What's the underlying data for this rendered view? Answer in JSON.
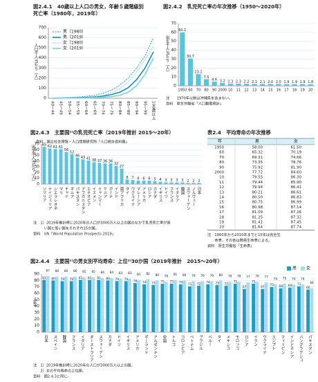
{
  "chart_data": [
    {
      "type": "line",
      "title": [
        "図2.4.1　40歳以上人口の男女，年齢５歳階級別",
        "死亡率（1980年，2019年）"
      ],
      "y_label": "人口千人当たり（人）",
      "categories": [
        "40～44",
        "45～49",
        "50～54",
        "55～59",
        "60～64",
        "65～69",
        "70～74",
        "75～79",
        "80～84",
        "85～89",
        "90～94",
        "95～99",
        "100歳以上"
      ],
      "series": [
        {
          "name": "男（1980）",
          "color": "#1a8fb0",
          "dash": true,
          "values": [
            3,
            5,
            8,
            12,
            19,
            30,
            50,
            80,
            130,
            200,
            300,
            420,
            600
          ]
        },
        {
          "name": "男（2019）",
          "color": "#1a8fb0",
          "dash": false,
          "values": [
            1.2,
            2,
            3.3,
            5.5,
            8.7,
            14,
            22,
            36,
            60,
            105,
            185,
            300,
            460
          ]
        },
        {
          "name": "女（1980）",
          "color": "#7fd0e8",
          "dash": true,
          "values": [
            1.8,
            2.8,
            4,
            6,
            9,
            15,
            28,
            52,
            95,
            160,
            260,
            380,
            520
          ]
        },
        {
          "name": "女（2019）",
          "color": "#7fd0e8",
          "dash": false,
          "values": [
            0.7,
            1.1,
            1.8,
            2.6,
            3.8,
            5.7,
            9,
            16,
            30,
            60,
            125,
            235,
            400
          ]
        }
      ],
      "ylim": [
        0,
        700
      ],
      "yticks": [
        0,
        100,
        200,
        300,
        400,
        500,
        600,
        700
      ],
      "grid": true,
      "legend": "upper left",
      "notes": [
        "資料　国立社会保障・人口問題研究所「人口統計資料集」"
      ]
    },
    {
      "type": "bar",
      "title": "図2.4.2　乳児死亡率の年次推移（1950〜2020年）",
      "y_label": "出生千人当たり（人）",
      "categories": [
        "1950",
        "60",
        "70",
        "80",
        "90",
        "2000",
        "10",
        "11",
        "12",
        "13",
        "14",
        "15",
        "16",
        "17",
        "18",
        "19",
        "20"
      ],
      "values": [
        60.1,
        30.7,
        13.1,
        7.5,
        4.6,
        3.2,
        2.3,
        2.3,
        2.2,
        2.1,
        2.1,
        2.0,
        2.0,
        1.9,
        1.9,
        1.9,
        1.8
      ],
      "value_labels": [
        "60.1",
        "30.7",
        "13.1",
        "7.5",
        "4.6",
        "3.2",
        "2.3",
        "2.3",
        "2.2",
        "2.1",
        "2.1",
        "2.0",
        "2.0",
        "1.9",
        "1.9",
        "1.9",
        "1.8"
      ],
      "color": "#5bc3e0",
      "ylim": [
        0,
        70
      ],
      "yticks": [
        0,
        10,
        20,
        30,
        40,
        50,
        60,
        70
      ],
      "grid": true,
      "notes": [
        "注　　1970年以前は沖縄県を含まない。",
        "資料　厚生労働省「人口動態統計」"
      ]
    },
    {
      "type": "bar",
      "title": "図2.4.3　主要国¹⁾の乳児死亡率（2019年推計 2015〜20年）",
      "y_label": "出生千人当たり（人）",
      "categories": [
        "ソマリア",
        "ナイジェリア",
        "シエラレオネ",
        "マリ",
        "チャド",
        "ギニア",
        "パキスタン",
        "アフガニスタン",
        "エチオピア",
        "イエメン",
        "ミャンマー",
        "ケニア",
        "ガーナ",
        "インド",
        "南アフリカ",
        "タイ",
        "ウクライナ",
        "マレーシア",
        "アメリカ",
        "ロシア",
        "カナダ",
        "イギリス",
        "ドイツ",
        "フランス",
        "イタリア",
        "韓国",
        "スウェーデン",
        "ノルウェー",
        "日本"
      ],
      "values": [
        65,
        62,
        61,
        61,
        56,
        52,
        46,
        43,
        41,
        38,
        37,
        36,
        36,
        32,
        27,
        8,
        7,
        6,
        6,
        6,
        5,
        4,
        3,
        3,
        3,
        3,
        2,
        2,
        2
      ],
      "color": "#5bc3e0",
      "ylim": [
        0,
        70
      ],
      "yticks": [
        0,
        10,
        20,
        30,
        40,
        50,
        60,
        70
      ],
      "grid": true,
      "notes": [
        "注　1）2019年推計時に2020年の人口が3000万人以上の国のなかで乳児死亡率が高",
        "　　　い国と低い国をそれぞれ15か国。",
        "資料　UN「World Population Prospects 2019」"
      ]
    },
    {
      "type": "grouped_bar",
      "title": "図2.4.4　主要国¹⁾の男女別平均寿命：上位²⁾30か国（2019年推計　2015〜20年）",
      "y_label": "（年）",
      "categories": [
        "日本",
        "スペイン",
        "韓国",
        "フランス",
        "イタリア",
        "オーストラリア",
        "スウェーデン",
        "カナダ",
        "ドイツ",
        "イギリス",
        "アメリカ",
        "ポーランド",
        "アルゼンチン",
        "中国",
        "トルコ",
        "コロンビア",
        "ベトナム",
        "ブラジル",
        "ペルー",
        "タイ",
        "メキシコ",
        "モロッコ",
        "ロシア",
        "イラン",
        "ウクライナ",
        "エジプト",
        "フィリピン",
        "インドネシア",
        "バングラデシュ",
        "パキスタン"
      ],
      "series": [
        {
          "name": "男",
          "color": "#1f9bc4",
          "values": [
            81,
            80,
            79,
            79,
            81,
            81,
            81,
            80,
            79,
            79,
            76,
            74,
            73,
            75,
            75,
            74,
            71,
            72,
            74,
            73,
            72,
            75,
            67,
            75,
            67,
            70,
            68,
            69,
            71,
            66
          ]
        },
        {
          "name": "女",
          "color": "#a8dcef",
          "values": [
            87,
            86,
            86,
            86,
            85,
            85,
            84,
            84,
            83,
            83,
            81,
            82,
            80,
            78,
            81,
            80,
            79,
            79,
            79,
            80,
            78,
            78,
            77,
            78,
            77,
            74,
            75,
            74,
            74,
            68
          ]
        }
      ],
      "ylim": [
        0,
        90
      ],
      "yticks": [
        0,
        10,
        20,
        30,
        40,
        50,
        60,
        70,
        80,
        90
      ],
      "grid": true,
      "legend": "upper right",
      "notes": [
        "注　1）2019年推計時に2020年の人口が3000万人以上の国。",
        "　　2）女の平均寿命の上位順。",
        "資料　図2.4.3と同じ。"
      ]
    }
  ],
  "table": {
    "title": "表2.4　平均寿命の年次推移",
    "columns": [
      "年",
      "男",
      "女"
    ],
    "rows": [
      [
        "1950",
        "58.00",
        "61.50"
      ],
      [
        "60",
        "65.32",
        "70.19"
      ],
      [
        "70",
        "69.31",
        "74.66"
      ],
      [
        "80",
        "73.35",
        "78.76"
      ],
      [
        "90",
        "75.92",
        "81.90"
      ],
      [
        "2000",
        "77.72",
        "84.60"
      ],
      [
        "10",
        "79.55",
        "86.30"
      ],
      [
        "11",
        "79.44",
        "85.90"
      ],
      [
        "12",
        "79.94",
        "86.41"
      ],
      [
        "13",
        "80.21",
        "86.61"
      ],
      [
        "14",
        "80.50",
        "86.83"
      ],
      [
        "15",
        "80.75",
        "86.99"
      ],
      [
        "16",
        "80.98",
        "87.14"
      ],
      [
        "17",
        "81.09",
        "87.26"
      ],
      [
        "18",
        "81.25",
        "87.32"
      ],
      [
        "19",
        "81.41",
        "87.45"
      ],
      [
        "20",
        "81.64",
        "87.74"
      ]
    ],
    "notes": [
      "注　1960年から2010年までと15年は完全生",
      "　　命表，その他は簡易生命表による。",
      "資料　厚生労働省「生命表」"
    ]
  }
}
